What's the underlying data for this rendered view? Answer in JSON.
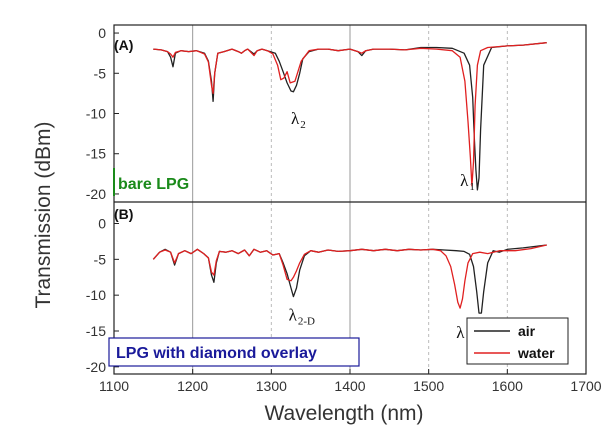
{
  "chart_data": [
    {
      "type": "line",
      "panel_label": "(A)",
      "caption": "bare LPG",
      "xlabel": "Wavelength (nm)",
      "ylabel": "Transmission (dBm)",
      "xlim": [
        1100,
        1700
      ],
      "ylim": [
        -21,
        1
      ],
      "xticks": [
        1100,
        1200,
        1300,
        1400,
        1500,
        1600,
        1700
      ],
      "yticks": [
        0,
        -5,
        -10,
        -15,
        -20
      ],
      "grid": true,
      "annotations": [
        {
          "text": "λ",
          "sub": "2",
          "x": 1325,
          "y": -11.3
        },
        {
          "text": "λ",
          "sub": "1",
          "x": 1540,
          "y": -19.0
        }
      ],
      "series": [
        {
          "name": "air",
          "color": "#222222",
          "x": [
            1150,
            1160,
            1168,
            1172,
            1175,
            1178,
            1185,
            1195,
            1205,
            1215,
            1220,
            1224,
            1226,
            1228,
            1232,
            1240,
            1250,
            1258,
            1262,
            1266,
            1270,
            1278,
            1282,
            1288,
            1295,
            1305,
            1310,
            1315,
            1320,
            1325,
            1328,
            1332,
            1336,
            1340,
            1348,
            1360,
            1372,
            1385,
            1400,
            1410,
            1415,
            1420,
            1430,
            1450,
            1470,
            1490,
            1510,
            1530,
            1545,
            1552,
            1556,
            1558,
            1560,
            1562,
            1564,
            1566,
            1570,
            1580,
            1600,
            1620,
            1650
          ],
          "y": [
            -2.0,
            -2.1,
            -2.3,
            -3.0,
            -4.2,
            -2.5,
            -2.2,
            -2.3,
            -2.2,
            -2.5,
            -3.5,
            -6.0,
            -8.5,
            -5.0,
            -2.5,
            -2.3,
            -2.0,
            -2.3,
            -2.5,
            -2.2,
            -2.0,
            -2.6,
            -2.2,
            -2.0,
            -2.2,
            -2.5,
            -3.5,
            -4.8,
            -6.2,
            -7.2,
            -7.3,
            -6.5,
            -5.0,
            -3.2,
            -2.3,
            -2.0,
            -2.0,
            -2.2,
            -2.0,
            -2.3,
            -2.8,
            -2.2,
            -2.0,
            -2.0,
            -2.1,
            -1.8,
            -1.8,
            -1.9,
            -2.5,
            -4.0,
            -8.0,
            -13.0,
            -17.0,
            -19.5,
            -18.0,
            -12.0,
            -4.0,
            -1.8,
            -1.6,
            -1.5,
            -1.2
          ]
        },
        {
          "name": "water",
          "color": "#e02020",
          "x": [
            1150,
            1160,
            1168,
            1172,
            1175,
            1178,
            1185,
            1195,
            1205,
            1215,
            1220,
            1224,
            1226,
            1228,
            1232,
            1240,
            1250,
            1258,
            1262,
            1266,
            1270,
            1278,
            1282,
            1288,
            1295,
            1302,
            1308,
            1312,
            1316,
            1320,
            1324,
            1330,
            1338,
            1348,
            1360,
            1372,
            1385,
            1400,
            1410,
            1415,
            1420,
            1430,
            1450,
            1470,
            1490,
            1510,
            1530,
            1540,
            1546,
            1550,
            1553,
            1555,
            1557,
            1559,
            1562,
            1566,
            1575,
            1600,
            1620,
            1650
          ],
          "y": [
            -2.0,
            -2.1,
            -2.3,
            -2.6,
            -3.0,
            -2.4,
            -2.2,
            -2.3,
            -2.2,
            -2.6,
            -3.6,
            -6.5,
            -7.5,
            -5.0,
            -2.5,
            -2.3,
            -2.0,
            -2.3,
            -2.5,
            -2.2,
            -2.0,
            -2.8,
            -2.2,
            -2.0,
            -2.2,
            -2.6,
            -4.0,
            -5.8,
            -5.6,
            -4.8,
            -6.2,
            -6.0,
            -3.5,
            -2.2,
            -2.0,
            -2.0,
            -2.2,
            -2.0,
            -2.3,
            -2.5,
            -2.2,
            -2.0,
            -2.0,
            -2.1,
            -1.9,
            -2.0,
            -2.2,
            -3.0,
            -6.0,
            -11.0,
            -15.5,
            -19.0,
            -16.0,
            -9.0,
            -4.0,
            -2.2,
            -1.8,
            -1.6,
            -1.5,
            -1.2
          ]
        }
      ]
    },
    {
      "type": "line",
      "panel_label": "(B)",
      "caption": "LPG with diamond overlay",
      "xlabel": "Wavelength (nm)",
      "ylabel": "Transmission (dBm)",
      "xlim": [
        1100,
        1700
      ],
      "ylim": [
        -21,
        3
      ],
      "xticks": [
        1100,
        1200,
        1300,
        1400,
        1500,
        1600,
        1700
      ],
      "yticks": [
        0,
        -5,
        -10,
        -15,
        -20
      ],
      "grid": true,
      "legend": {
        "position": "bottom-right",
        "entries": [
          "air",
          "water"
        ]
      },
      "annotations": [
        {
          "text": "λ",
          "sub": "2-D",
          "x": 1322,
          "y": -13.5
        },
        {
          "text": "λ",
          "sub": "1-D",
          "x": 1535,
          "y": -16.0
        }
      ],
      "series": [
        {
          "name": "air",
          "color": "#222222",
          "x": [
            1150,
            1158,
            1165,
            1172,
            1177,
            1182,
            1190,
            1198,
            1206,
            1214,
            1220,
            1224,
            1227,
            1230,
            1234,
            1242,
            1250,
            1258,
            1266,
            1272,
            1278,
            1286,
            1294,
            1302,
            1310,
            1315,
            1320,
            1325,
            1328,
            1332,
            1336,
            1342,
            1350,
            1360,
            1372,
            1385,
            1400,
            1415,
            1430,
            1445,
            1460,
            1475,
            1490,
            1505,
            1520,
            1535,
            1545,
            1552,
            1557,
            1561,
            1564,
            1567,
            1570,
            1575,
            1582,
            1590,
            1600,
            1620,
            1650
          ],
          "y": [
            -5.0,
            -4.0,
            -3.6,
            -4.0,
            -5.8,
            -4.2,
            -3.8,
            -4.2,
            -3.6,
            -4.2,
            -4.8,
            -7.2,
            -8.2,
            -5.5,
            -3.9,
            -4.0,
            -3.8,
            -4.2,
            -3.7,
            -4.5,
            -3.6,
            -4.0,
            -3.8,
            -4.4,
            -4.2,
            -5.5,
            -7.0,
            -9.0,
            -10.2,
            -9.0,
            -6.5,
            -4.5,
            -3.8,
            -4.0,
            -3.7,
            -3.9,
            -3.8,
            -3.6,
            -3.8,
            -3.6,
            -3.8,
            -3.6,
            -3.7,
            -3.6,
            -3.7,
            -3.8,
            -3.9,
            -4.3,
            -6.0,
            -9.5,
            -12.5,
            -12.5,
            -9.5,
            -5.5,
            -3.8,
            -4.0,
            -3.6,
            -3.4,
            -3.0
          ]
        },
        {
          "name": "water",
          "color": "#e02020",
          "x": [
            1150,
            1158,
            1165,
            1172,
            1177,
            1182,
            1190,
            1198,
            1206,
            1214,
            1220,
            1224,
            1227,
            1230,
            1234,
            1242,
            1250,
            1258,
            1266,
            1272,
            1278,
            1286,
            1294,
            1302,
            1310,
            1315,
            1320,
            1325,
            1328,
            1332,
            1336,
            1342,
            1350,
            1360,
            1372,
            1385,
            1400,
            1415,
            1430,
            1445,
            1460,
            1475,
            1490,
            1505,
            1515,
            1522,
            1528,
            1533,
            1537,
            1540,
            1543,
            1546,
            1550,
            1556,
            1565,
            1575,
            1590,
            1610,
            1630,
            1650
          ],
          "y": [
            -5.0,
            -4.0,
            -3.7,
            -4.0,
            -5.5,
            -4.2,
            -3.8,
            -4.2,
            -3.6,
            -4.2,
            -4.8,
            -6.8,
            -7.2,
            -5.2,
            -3.9,
            -4.0,
            -3.8,
            -4.2,
            -3.7,
            -4.5,
            -3.6,
            -4.0,
            -3.8,
            -4.4,
            -4.2,
            -5.8,
            -7.8,
            -8.0,
            -7.5,
            -6.6,
            -5.5,
            -4.3,
            -3.8,
            -4.0,
            -3.7,
            -3.9,
            -3.8,
            -3.6,
            -3.8,
            -3.6,
            -3.8,
            -3.6,
            -3.7,
            -3.6,
            -3.8,
            -4.5,
            -6.0,
            -8.5,
            -11.0,
            -11.8,
            -10.5,
            -8.0,
            -5.5,
            -4.2,
            -4.0,
            -4.2,
            -3.8,
            -3.8,
            -3.5,
            -3.0
          ]
        }
      ]
    }
  ]
}
